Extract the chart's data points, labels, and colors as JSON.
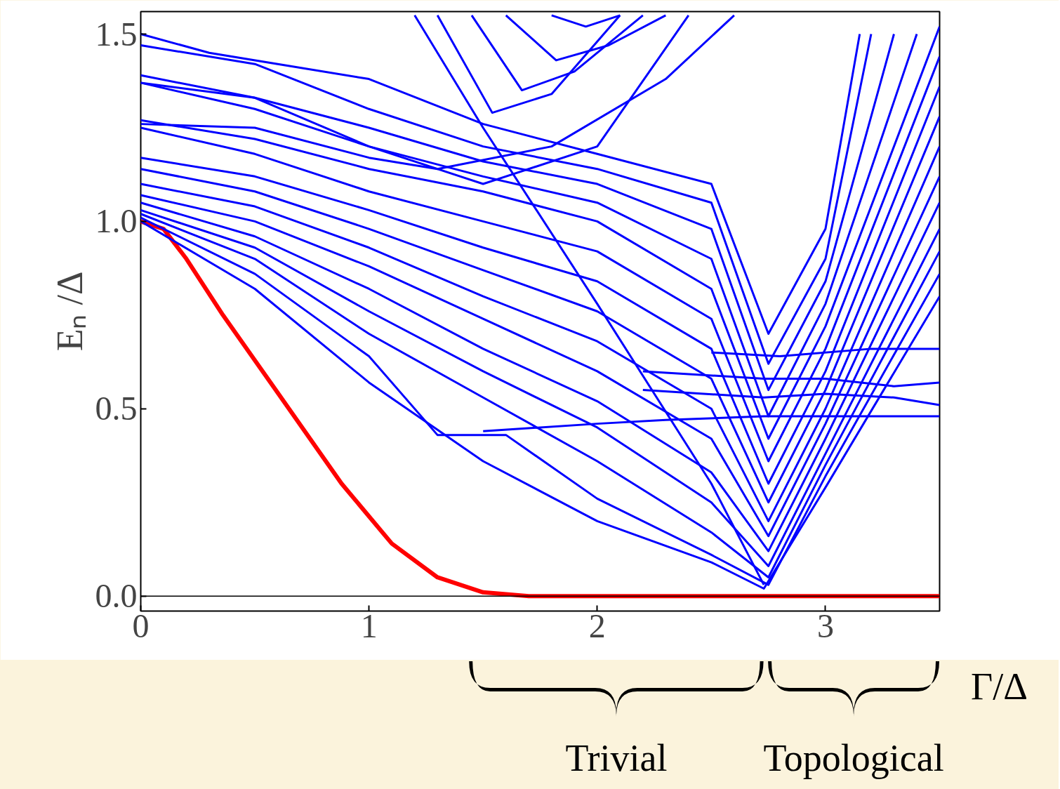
{
  "chart_data": {
    "type": "line",
    "xlabel": "Γ/Δ",
    "ylabel": "Eₙ /Δ",
    "xlim": [
      0,
      3.5
    ],
    "ylim": [
      -0.04,
      1.56
    ],
    "xticks": [
      0,
      1,
      2,
      3
    ],
    "yticks": [
      {
        "value": 0,
        "label": "0.0"
      },
      0.5,
      {
        "value": 1,
        "label": "1.0"
      },
      1.5
    ],
    "grid": false,
    "marker": "none",
    "line_style": "solid",
    "ref_lines": [
      {
        "axis": "y",
        "value": 0,
        "color": "#000000"
      }
    ],
    "annotations": [
      "Trivial",
      "Topological"
    ],
    "series": [
      {
        "color": "#ff0000",
        "x": [
          0,
          0.1,
          0.2,
          0.36,
          0.58,
          0.88,
          1.1,
          1.3,
          1.5,
          1.7,
          2,
          2.5,
          3,
          3.5
        ],
        "values": [
          1,
          0.98,
          0.9,
          0.75,
          0.56,
          0.3,
          0.14,
          0.05,
          0.01,
          0,
          0,
          0,
          0,
          0
        ]
      },
      {
        "color": "#0000ff",
        "x": [
          0,
          0.5,
          1,
          1.5,
          2,
          2.5,
          2.73,
          3,
          3.5
        ],
        "values": [
          1.0,
          0.82,
          0.57,
          0.36,
          0.2,
          0.09,
          0.02,
          0.29,
          0.8
        ]
      },
      {
        "color": "#0000ff",
        "x": [
          0,
          0.5,
          1,
          1.3,
          1.6,
          2,
          2.5,
          2.75,
          3,
          3.5
        ],
        "values": [
          1.01,
          0.86,
          0.64,
          0.43,
          0.43,
          0.26,
          0.11,
          0.03,
          0.32,
          0.86
        ]
      },
      {
        "color": "#0000ff",
        "x": [
          0,
          0.5,
          1,
          1.5,
          2,
          2.5,
          2.75,
          3,
          3.5
        ],
        "values": [
          1.02,
          0.9,
          0.7,
          0.53,
          0.36,
          0.17,
          0.05,
          0.35,
          0.92
        ]
      },
      {
        "color": "#0000ff",
        "x": [
          0,
          0.5,
          1,
          1.5,
          2,
          2.5,
          2.75,
          3,
          3.5
        ],
        "values": [
          1.03,
          0.93,
          0.76,
          0.6,
          0.45,
          0.25,
          0.08,
          0.38,
          0.98
        ]
      },
      {
        "color": "#0000ff",
        "x": [
          0,
          0.5,
          1,
          1.5,
          2,
          2.5,
          2.75,
          3,
          3.5
        ],
        "values": [
          1.05,
          0.96,
          0.82,
          0.66,
          0.52,
          0.33,
          0.12,
          0.42,
          1.05
        ]
      },
      {
        "color": "#0000ff",
        "x": [
          0,
          0.5,
          1,
          1.5,
          2,
          2.5,
          2.75,
          3,
          3.5
        ],
        "values": [
          1.07,
          1.0,
          0.88,
          0.74,
          0.6,
          0.42,
          0.16,
          0.46,
          1.12
        ]
      },
      {
        "color": "#0000ff",
        "x": [
          0,
          0.5,
          1,
          1.5,
          2,
          2.5,
          2.75,
          3,
          3.5
        ],
        "values": [
          1.1,
          1.04,
          0.93,
          0.8,
          0.68,
          0.5,
          0.2,
          0.5,
          1.2
        ]
      },
      {
        "color": "#0000ff",
        "x": [
          0,
          0.5,
          1,
          1.5,
          2,
          2.5,
          2.75,
          3,
          3.5
        ],
        "values": [
          1.14,
          1.08,
          0.98,
          0.87,
          0.76,
          0.58,
          0.25,
          0.55,
          1.28
        ]
      },
      {
        "color": "#0000ff",
        "x": [
          0,
          0.5,
          1,
          1.5,
          2,
          2.5,
          2.75,
          3,
          3.5
        ],
        "values": [
          1.17,
          1.12,
          1.03,
          0.93,
          0.84,
          0.66,
          0.3,
          0.6,
          1.36
        ]
      },
      {
        "color": "#0000ff",
        "x": [
          0,
          0.5,
          1,
          1.5,
          2,
          2.5,
          2.75,
          3,
          3.5
        ],
        "values": [
          1.25,
          1.18,
          1.08,
          1.0,
          0.92,
          0.74,
          0.36,
          0.66,
          1.44
        ]
      },
      {
        "color": "#0000ff",
        "x": [
          0,
          0.5,
          1,
          1.5,
          2,
          2.5,
          2.75,
          3,
          3.5
        ],
        "values": [
          1.27,
          1.22,
          1.14,
          1.08,
          1.0,
          0.82,
          0.42,
          0.72,
          1.52
        ]
      },
      {
        "color": "#0000ff",
        "x": [
          0,
          0.5,
          1,
          1.5,
          2,
          2.5,
          2.75,
          3,
          3.4
        ],
        "values": [
          1.37,
          1.3,
          1.2,
          1.12,
          1.05,
          0.9,
          0.48,
          0.78,
          1.5
        ]
      },
      {
        "color": "#0000ff",
        "x": [
          0,
          0.5,
          1,
          1.5,
          2,
          2.5,
          2.75,
          3,
          3.3
        ],
        "values": [
          1.39,
          1.33,
          1.25,
          1.16,
          1.1,
          0.98,
          0.55,
          0.84,
          1.5
        ]
      },
      {
        "color": "#0000ff",
        "x": [
          0,
          0.5,
          1,
          1.5,
          2,
          2.5,
          2.75,
          3,
          3.2
        ],
        "values": [
          1.47,
          1.42,
          1.3,
          1.2,
          1.14,
          1.05,
          0.62,
          0.9,
          1.5
        ]
      },
      {
        "color": "#0000ff",
        "x": [
          0,
          0.3,
          0.6,
          1,
          1.5,
          2,
          2.5,
          2.75,
          3,
          3.15
        ],
        "values": [
          1.5,
          1.45,
          1.42,
          1.38,
          1.26,
          1.18,
          1.1,
          0.7,
          0.98,
          1.5
        ]
      },
      {
        "color": "#0000ff",
        "x": [
          1.2,
          1.5,
          2,
          2.5,
          2.73
        ],
        "values": [
          1.55,
          1.25,
          0.78,
          0.3,
          0.03
        ]
      },
      {
        "color": "#0000ff",
        "x": [
          1.3,
          1.54,
          1.8,
          2.1
        ],
        "values": [
          1.55,
          1.29,
          1.34,
          1.55
        ]
      },
      {
        "color": "#0000ff",
        "x": [
          1.45,
          1.67,
          1.9,
          2.2
        ],
        "values": [
          1.55,
          1.35,
          1.4,
          1.55
        ]
      },
      {
        "color": "#0000ff",
        "x": [
          1.6,
          1.82,
          2.05,
          2.3
        ],
        "values": [
          1.55,
          1.43,
          1.47,
          1.55
        ]
      },
      {
        "color": "#0000ff",
        "x": [
          1.8,
          1.95,
          2.1
        ],
        "values": [
          1.55,
          1.52,
          1.55
        ]
      },
      {
        "color": "#0000ff",
        "x": [
          1.5,
          2.0,
          2.3,
          2.73,
          3.0,
          3.5
        ],
        "values": [
          0.44,
          0.46,
          0.47,
          0.48,
          0.48,
          0.48
        ]
      },
      {
        "color": "#0000ff",
        "x": [
          2.2,
          2.73,
          3.0,
          3.3,
          3.5
        ],
        "values": [
          0.55,
          0.53,
          0.54,
          0.53,
          0.51
        ]
      },
      {
        "color": "#0000ff",
        "x": [
          2.2,
          2.73,
          3.0,
          3.3,
          3.5
        ],
        "values": [
          0.6,
          0.58,
          0.58,
          0.56,
          0.57
        ]
      },
      {
        "color": "#0000ff",
        "x": [
          2.5,
          2.8,
          3.2,
          3.5
        ],
        "values": [
          0.65,
          0.64,
          0.66,
          0.66
        ]
      },
      {
        "color": "#0000ff",
        "x": [
          0,
          0.5,
          1,
          1.3,
          1.8,
          2.3,
          2.6
        ],
        "values": [
          1.26,
          1.25,
          1.17,
          1.14,
          1.2,
          1.38,
          1.55
        ]
      },
      {
        "color": "#0000ff",
        "x": [
          0,
          0.5,
          1,
          1.5,
          2,
          2.4
        ],
        "values": [
          1.37,
          1.33,
          1.2,
          1.1,
          1.2,
          1.55
        ]
      }
    ]
  }
}
